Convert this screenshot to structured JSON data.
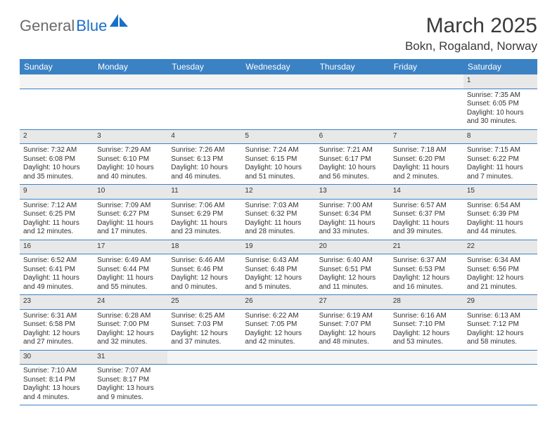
{
  "brand": {
    "gray": "General",
    "blue": "Blue"
  },
  "header": {
    "title": "March 2025",
    "location": "Bokn, Rogaland, Norway"
  },
  "style": {
    "header_bg": "#3b82c4",
    "header_text": "#ffffff",
    "row_border": "#3b82c4",
    "daynum_bg": "#e8e8e8",
    "body_text": "#333333",
    "brand_gray": "#6b6b6b",
    "brand_blue": "#1a6fc9",
    "title_fontsize": 30,
    "location_fontsize": 17,
    "cell_fontsize": 10
  },
  "weekdays": [
    "Sunday",
    "Monday",
    "Tuesday",
    "Wednesday",
    "Thursday",
    "Friday",
    "Saturday"
  ],
  "weeks": [
    {
      "nums": [
        "",
        "",
        "",
        "",
        "",
        "",
        "1"
      ],
      "cells": [
        {
          "sunrise": "",
          "sunset": "",
          "daylight": ""
        },
        {
          "sunrise": "",
          "sunset": "",
          "daylight": ""
        },
        {
          "sunrise": "",
          "sunset": "",
          "daylight": ""
        },
        {
          "sunrise": "",
          "sunset": "",
          "daylight": ""
        },
        {
          "sunrise": "",
          "sunset": "",
          "daylight": ""
        },
        {
          "sunrise": "",
          "sunset": "",
          "daylight": ""
        },
        {
          "sunrise": "Sunrise: 7:35 AM",
          "sunset": "Sunset: 6:05 PM",
          "daylight": "Daylight: 10 hours and 30 minutes."
        }
      ]
    },
    {
      "nums": [
        "2",
        "3",
        "4",
        "5",
        "6",
        "7",
        "8"
      ],
      "cells": [
        {
          "sunrise": "Sunrise: 7:32 AM",
          "sunset": "Sunset: 6:08 PM",
          "daylight": "Daylight: 10 hours and 35 minutes."
        },
        {
          "sunrise": "Sunrise: 7:29 AM",
          "sunset": "Sunset: 6:10 PM",
          "daylight": "Daylight: 10 hours and 40 minutes."
        },
        {
          "sunrise": "Sunrise: 7:26 AM",
          "sunset": "Sunset: 6:13 PM",
          "daylight": "Daylight: 10 hours and 46 minutes."
        },
        {
          "sunrise": "Sunrise: 7:24 AM",
          "sunset": "Sunset: 6:15 PM",
          "daylight": "Daylight: 10 hours and 51 minutes."
        },
        {
          "sunrise": "Sunrise: 7:21 AM",
          "sunset": "Sunset: 6:17 PM",
          "daylight": "Daylight: 10 hours and 56 minutes."
        },
        {
          "sunrise": "Sunrise: 7:18 AM",
          "sunset": "Sunset: 6:20 PM",
          "daylight": "Daylight: 11 hours and 2 minutes."
        },
        {
          "sunrise": "Sunrise: 7:15 AM",
          "sunset": "Sunset: 6:22 PM",
          "daylight": "Daylight: 11 hours and 7 minutes."
        }
      ]
    },
    {
      "nums": [
        "9",
        "10",
        "11",
        "12",
        "13",
        "14",
        "15"
      ],
      "cells": [
        {
          "sunrise": "Sunrise: 7:12 AM",
          "sunset": "Sunset: 6:25 PM",
          "daylight": "Daylight: 11 hours and 12 minutes."
        },
        {
          "sunrise": "Sunrise: 7:09 AM",
          "sunset": "Sunset: 6:27 PM",
          "daylight": "Daylight: 11 hours and 17 minutes."
        },
        {
          "sunrise": "Sunrise: 7:06 AM",
          "sunset": "Sunset: 6:29 PM",
          "daylight": "Daylight: 11 hours and 23 minutes."
        },
        {
          "sunrise": "Sunrise: 7:03 AM",
          "sunset": "Sunset: 6:32 PM",
          "daylight": "Daylight: 11 hours and 28 minutes."
        },
        {
          "sunrise": "Sunrise: 7:00 AM",
          "sunset": "Sunset: 6:34 PM",
          "daylight": "Daylight: 11 hours and 33 minutes."
        },
        {
          "sunrise": "Sunrise: 6:57 AM",
          "sunset": "Sunset: 6:37 PM",
          "daylight": "Daylight: 11 hours and 39 minutes."
        },
        {
          "sunrise": "Sunrise: 6:54 AM",
          "sunset": "Sunset: 6:39 PM",
          "daylight": "Daylight: 11 hours and 44 minutes."
        }
      ]
    },
    {
      "nums": [
        "16",
        "17",
        "18",
        "19",
        "20",
        "21",
        "22"
      ],
      "cells": [
        {
          "sunrise": "Sunrise: 6:52 AM",
          "sunset": "Sunset: 6:41 PM",
          "daylight": "Daylight: 11 hours and 49 minutes."
        },
        {
          "sunrise": "Sunrise: 6:49 AM",
          "sunset": "Sunset: 6:44 PM",
          "daylight": "Daylight: 11 hours and 55 minutes."
        },
        {
          "sunrise": "Sunrise: 6:46 AM",
          "sunset": "Sunset: 6:46 PM",
          "daylight": "Daylight: 12 hours and 0 minutes."
        },
        {
          "sunrise": "Sunrise: 6:43 AM",
          "sunset": "Sunset: 6:48 PM",
          "daylight": "Daylight: 12 hours and 5 minutes."
        },
        {
          "sunrise": "Sunrise: 6:40 AM",
          "sunset": "Sunset: 6:51 PM",
          "daylight": "Daylight: 12 hours and 11 minutes."
        },
        {
          "sunrise": "Sunrise: 6:37 AM",
          "sunset": "Sunset: 6:53 PM",
          "daylight": "Daylight: 12 hours and 16 minutes."
        },
        {
          "sunrise": "Sunrise: 6:34 AM",
          "sunset": "Sunset: 6:56 PM",
          "daylight": "Daylight: 12 hours and 21 minutes."
        }
      ]
    },
    {
      "nums": [
        "23",
        "24",
        "25",
        "26",
        "27",
        "28",
        "29"
      ],
      "cells": [
        {
          "sunrise": "Sunrise: 6:31 AM",
          "sunset": "Sunset: 6:58 PM",
          "daylight": "Daylight: 12 hours and 27 minutes."
        },
        {
          "sunrise": "Sunrise: 6:28 AM",
          "sunset": "Sunset: 7:00 PM",
          "daylight": "Daylight: 12 hours and 32 minutes."
        },
        {
          "sunrise": "Sunrise: 6:25 AM",
          "sunset": "Sunset: 7:03 PM",
          "daylight": "Daylight: 12 hours and 37 minutes."
        },
        {
          "sunrise": "Sunrise: 6:22 AM",
          "sunset": "Sunset: 7:05 PM",
          "daylight": "Daylight: 12 hours and 42 minutes."
        },
        {
          "sunrise": "Sunrise: 6:19 AM",
          "sunset": "Sunset: 7:07 PM",
          "daylight": "Daylight: 12 hours and 48 minutes."
        },
        {
          "sunrise": "Sunrise: 6:16 AM",
          "sunset": "Sunset: 7:10 PM",
          "daylight": "Daylight: 12 hours and 53 minutes."
        },
        {
          "sunrise": "Sunrise: 6:13 AM",
          "sunset": "Sunset: 7:12 PM",
          "daylight": "Daylight: 12 hours and 58 minutes."
        }
      ]
    },
    {
      "nums": [
        "30",
        "31",
        "",
        "",
        "",
        "",
        ""
      ],
      "cells": [
        {
          "sunrise": "Sunrise: 7:10 AM",
          "sunset": "Sunset: 8:14 PM",
          "daylight": "Daylight: 13 hours and 4 minutes."
        },
        {
          "sunrise": "Sunrise: 7:07 AM",
          "sunset": "Sunset: 8:17 PM",
          "daylight": "Daylight: 13 hours and 9 minutes."
        },
        {
          "sunrise": "",
          "sunset": "",
          "daylight": ""
        },
        {
          "sunrise": "",
          "sunset": "",
          "daylight": ""
        },
        {
          "sunrise": "",
          "sunset": "",
          "daylight": ""
        },
        {
          "sunrise": "",
          "sunset": "",
          "daylight": ""
        },
        {
          "sunrise": "",
          "sunset": "",
          "daylight": ""
        }
      ]
    }
  ]
}
